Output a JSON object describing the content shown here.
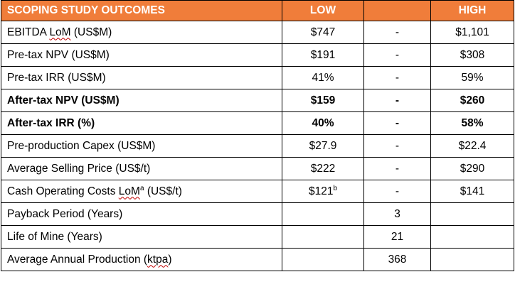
{
  "header": {
    "title": "SCOPING STUDY OUTCOMES",
    "low": "LOW",
    "mid": "",
    "high": "HIGH"
  },
  "rows": [
    {
      "label_pre": "EBITDA ",
      "label_squiggle": "LoM",
      "label_post": " (US$M)",
      "low": "$747",
      "mid": "-",
      "high": "$1,101"
    },
    {
      "label": "Pre-tax NPV (US$M)",
      "low": "$191",
      "mid": "-",
      "high": "$308"
    },
    {
      "label": "Pre-tax IRR (US$M)",
      "low": "41%",
      "mid": "-",
      "high": "59%"
    },
    {
      "label": "After-tax NPV (US$M)",
      "low": "$159",
      "mid": "-",
      "high": "$260",
      "bold": true
    },
    {
      "label": "After-tax IRR (%)",
      "low": "40%",
      "mid": "-",
      "high": "58%",
      "bold": true
    },
    {
      "label": "Pre-production Capex (US$M)",
      "low": "$27.9",
      "mid": "-",
      "high": "$22.4"
    },
    {
      "label": "Average Selling Price (US$/t)",
      "low": "$222",
      "mid": "-",
      "high": "$290"
    },
    {
      "label_pre": "Cash Operating Costs ",
      "label_squiggle": "LoM",
      "label_sup": "a",
      "label_post": " (US$/t)",
      "low": "$121",
      "low_sup": "b",
      "mid": "-",
      "high": "$141"
    },
    {
      "label": "Payback Period (Years)",
      "low": "",
      "mid": "3",
      "high": ""
    },
    {
      "label": "Life of Mine (Years)",
      "low": "",
      "mid": "21",
      "high": ""
    },
    {
      "label_pre": "Average Annual Production (",
      "label_squiggle": "ktpa",
      "label_post": ")",
      "low": "",
      "mid": "368",
      "high": ""
    }
  ],
  "colors": {
    "header_bg": "#F07D3A",
    "header_text": "#FFFFFF",
    "border": "#000000",
    "spellcheck_underline": "#C00000"
  }
}
